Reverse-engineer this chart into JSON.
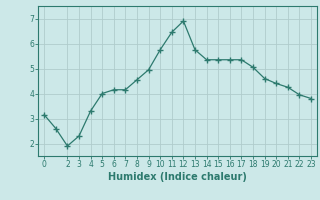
{
  "x": [
    0,
    1,
    2,
    3,
    4,
    5,
    6,
    7,
    8,
    9,
    10,
    11,
    12,
    13,
    14,
    15,
    16,
    17,
    18,
    19,
    20,
    21,
    22,
    23
  ],
  "y": [
    3.15,
    2.6,
    1.9,
    2.3,
    3.3,
    4.0,
    4.15,
    4.15,
    4.55,
    4.95,
    5.75,
    6.45,
    6.9,
    5.75,
    5.35,
    5.35,
    5.35,
    5.35,
    5.05,
    4.6,
    4.4,
    4.25,
    3.95,
    3.8
  ],
  "xlabel": "Humidex (Indice chaleur)",
  "ylabel": "",
  "title": "",
  "xlim": [
    -0.5,
    23.5
  ],
  "ylim": [
    1.5,
    7.5
  ],
  "yticks": [
    2,
    3,
    4,
    5,
    6,
    7
  ],
  "xticks": [
    0,
    2,
    3,
    4,
    5,
    6,
    7,
    8,
    9,
    10,
    11,
    12,
    13,
    14,
    15,
    16,
    17,
    18,
    19,
    20,
    21,
    22,
    23
  ],
  "line_color": "#2d7a6e",
  "marker": "+",
  "marker_size": 4,
  "marker_linewidth": 1.0,
  "line_width": 0.9,
  "bg_color": "#cce8e8",
  "grid_color": "#b0cccc",
  "axis_color": "#2d7a6e",
  "tick_color": "#2d7a6e",
  "label_color": "#2d7a6e",
  "xlabel_fontsize": 7,
  "tick_fontsize": 5.5
}
